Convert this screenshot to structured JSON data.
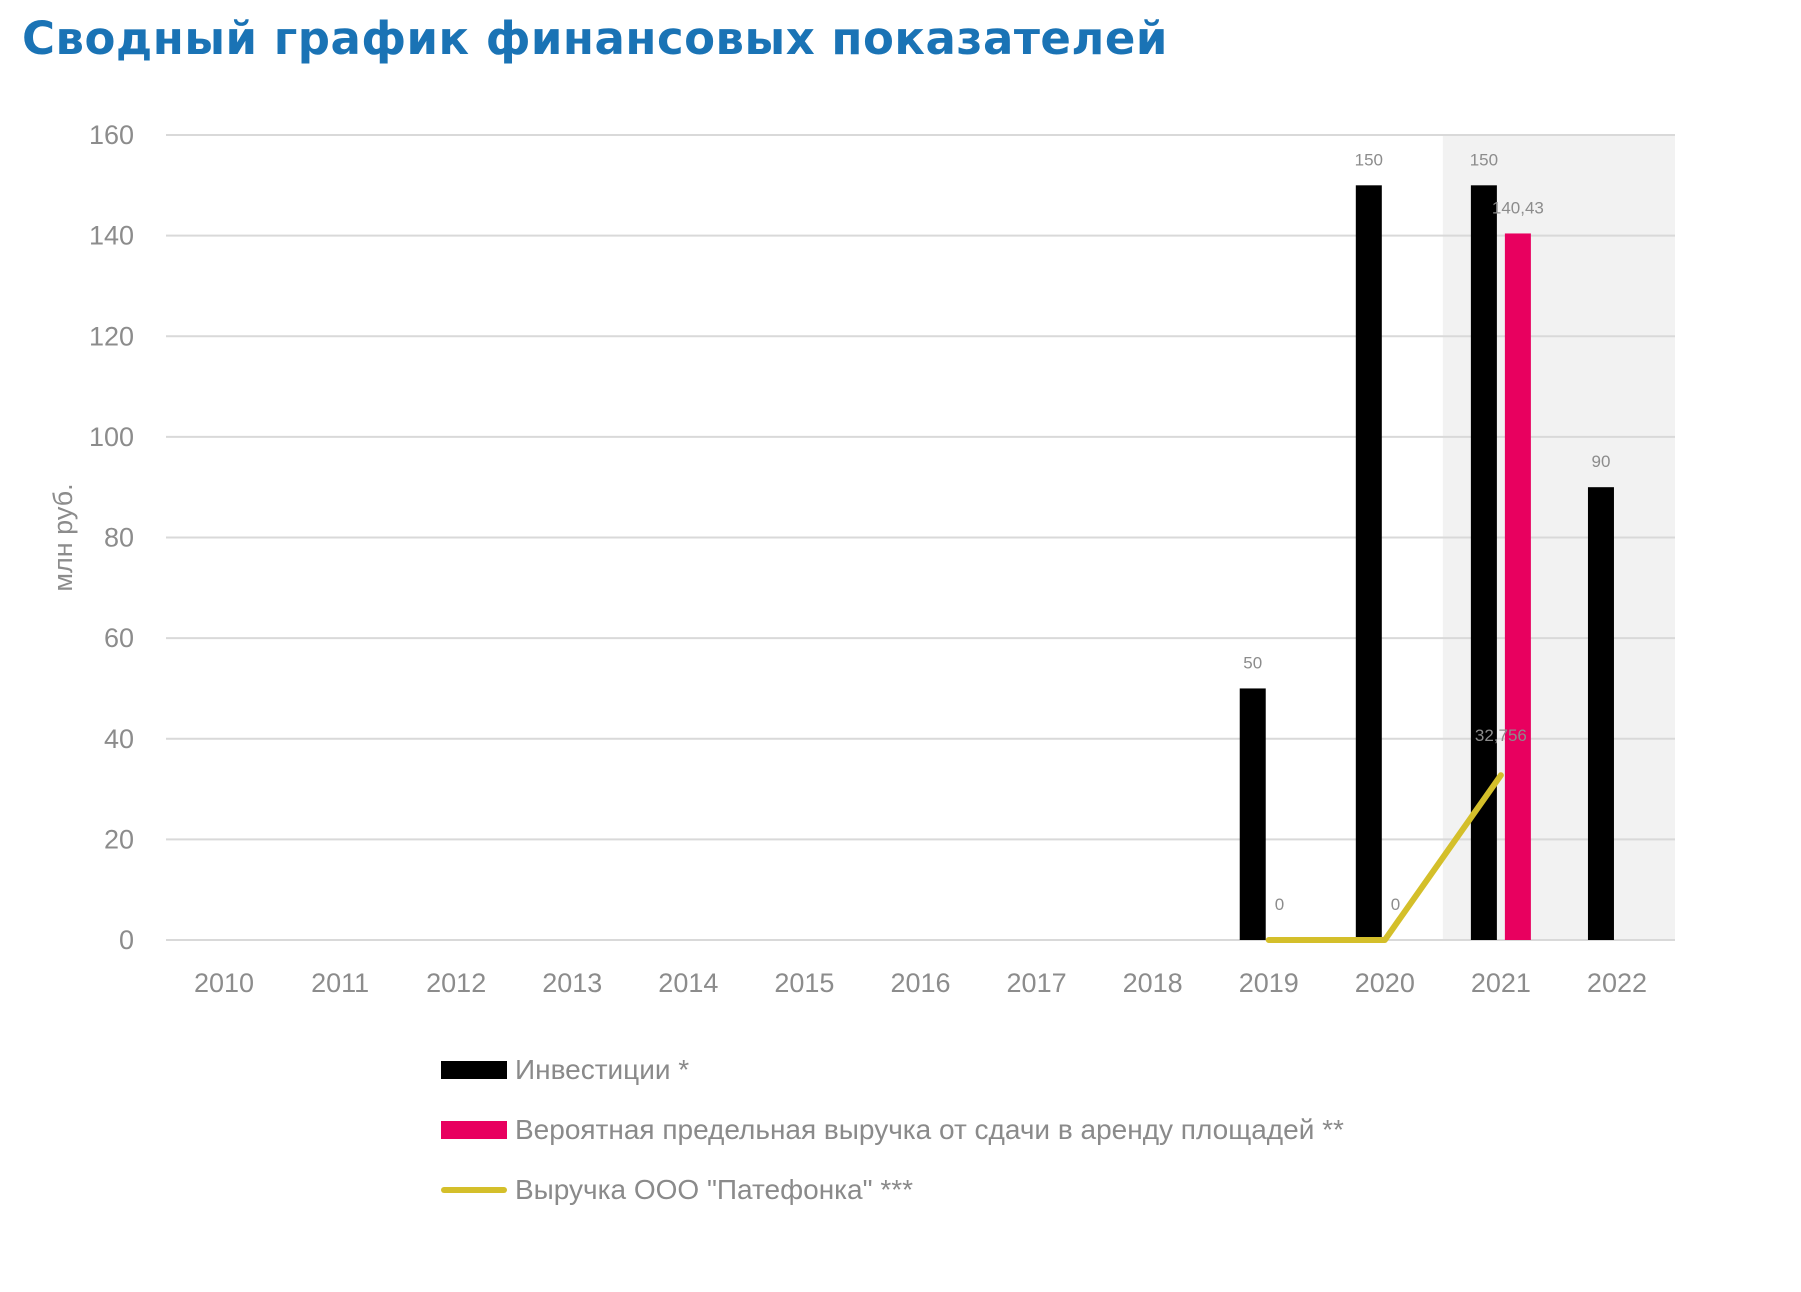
{
  "title": "Сводный график финансовых показателей",
  "chart_data": {
    "type": "bar",
    "categories": [
      "2010",
      "2011",
      "2012",
      "2013",
      "2014",
      "2015",
      "2016",
      "2017",
      "2018",
      "2019",
      "2020",
      "2021",
      "2022"
    ],
    "ylabel": "млн руб.",
    "ylim": [
      0,
      160
    ],
    "yticks": [
      "0",
      "20",
      "40",
      "60",
      "80",
      "100",
      "120",
      "140",
      "160"
    ],
    "grid": true,
    "highlight_categories": [
      "2021",
      "2022"
    ],
    "series": [
      {
        "name": "Инвестиции *",
        "kind": "bar",
        "color": "#000000",
        "values": [
          null,
          null,
          null,
          null,
          null,
          null,
          null,
          null,
          null,
          50,
          150,
          150,
          90
        ],
        "labels": [
          null,
          null,
          null,
          null,
          null,
          null,
          null,
          null,
          null,
          "50",
          "150",
          "150",
          "90"
        ]
      },
      {
        "name": "Вероятная предельная выручка от сдачи в аренду площадей **",
        "kind": "bar",
        "color": "#e8005f",
        "values": [
          null,
          null,
          null,
          null,
          null,
          null,
          null,
          null,
          null,
          null,
          null,
          140.43,
          null
        ],
        "labels": [
          null,
          null,
          null,
          null,
          null,
          null,
          null,
          null,
          null,
          null,
          null,
          "140,43",
          null
        ]
      },
      {
        "name": "Выручка ООО \"Патефонка\" ***",
        "kind": "line",
        "color": "#d4bf2a",
        "values": [
          null,
          null,
          null,
          null,
          null,
          null,
          null,
          null,
          null,
          0,
          0,
          32.756,
          null
        ],
        "labels": [
          null,
          null,
          null,
          null,
          null,
          null,
          null,
          null,
          null,
          "0",
          "0",
          "32,756",
          null
        ]
      }
    ],
    "legend_position": "bottom"
  }
}
